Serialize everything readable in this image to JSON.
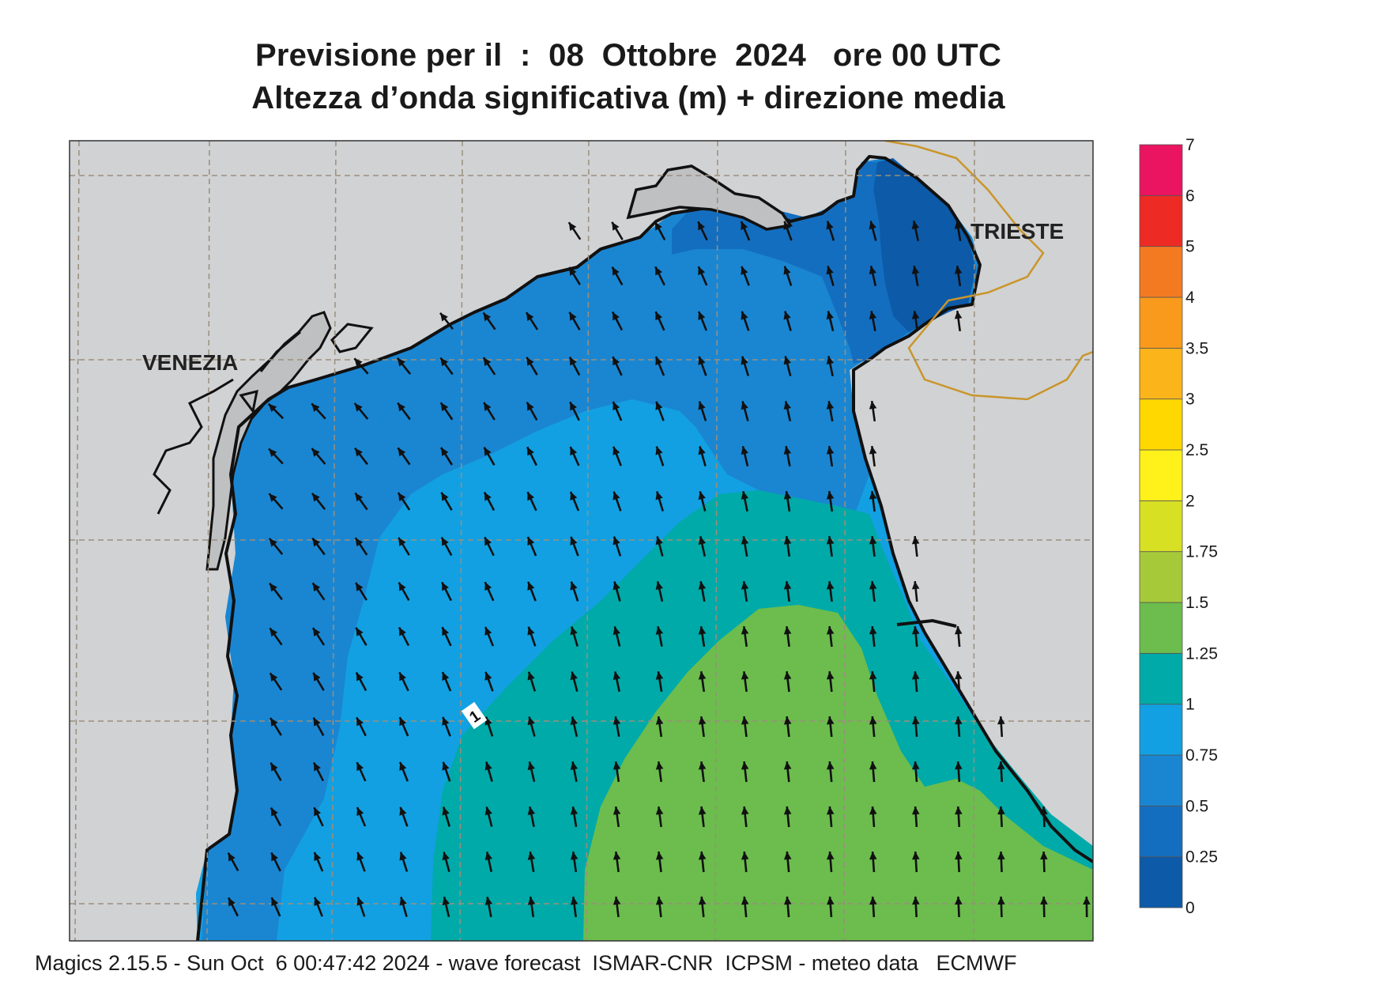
{
  "title": {
    "line1": "Previsione per il  :  08  Ottobre  2024   ore 00 UTC",
    "line2": "Altezza d’onda significativa (m) + direzione media"
  },
  "map": {
    "places": [
      "VENEZIA",
      "TRIESTE"
    ],
    "contour_label": "1"
  },
  "legend": {
    "bands": [
      {
        "label": "0",
        "color": "#0d5aa8"
      },
      {
        "label": "0.25",
        "color": "#146ec0"
      },
      {
        "label": "0.5",
        "color": "#1a86d2"
      },
      {
        "label": "0.75",
        "color": "#12a0e2"
      },
      {
        "label": "1",
        "color": "#00aaa8"
      },
      {
        "label": "1.25",
        "color": "#6cbd4d"
      },
      {
        "label": "1.5",
        "color": "#a6c93a"
      },
      {
        "label": "1.75",
        "color": "#d8e024"
      },
      {
        "label": "2",
        "color": "#fff11a"
      },
      {
        "label": "2.5",
        "color": "#ffd800"
      },
      {
        "label": "3",
        "color": "#fbb41a"
      },
      {
        "label": "3.5",
        "color": "#f99a1c"
      },
      {
        "label": "4",
        "color": "#f47a22"
      },
      {
        "label": "5",
        "color": "#ee2a24"
      },
      {
        "label": "6",
        "color": "#eb1460"
      }
    ],
    "top_label": "7"
  },
  "colors": {
    "land": "#d1d2d4",
    "lagoon": "#bfc0c2",
    "coast": "#111111",
    "border": "#c9962b",
    "grid": "#9a8f7d"
  },
  "footer": "Magics 2.15.5 - Sun Oct  6 00:47:42 2024 - wave forecast  ISMAR-CNR  ICPSM - meteo data   ECMWF"
}
